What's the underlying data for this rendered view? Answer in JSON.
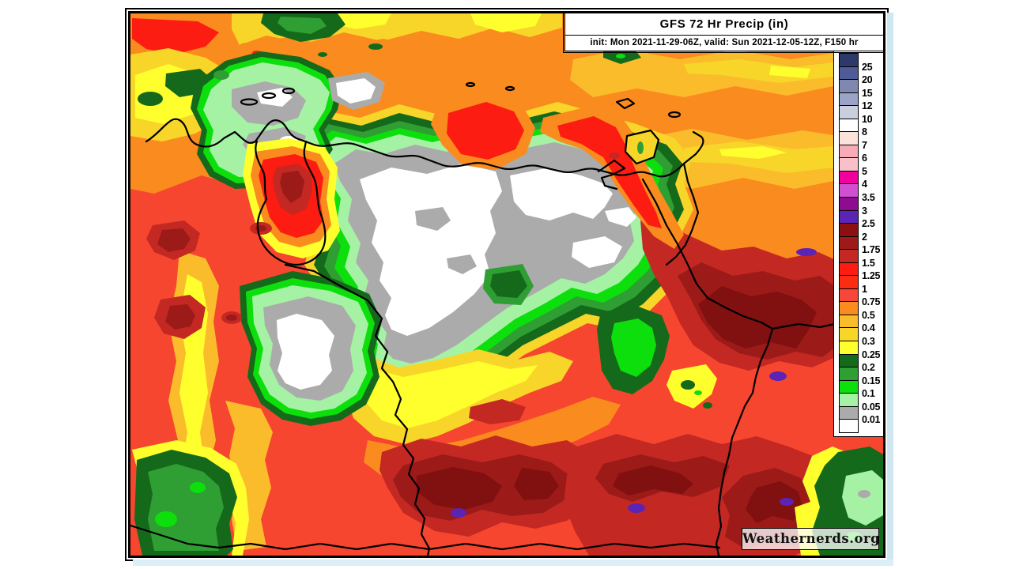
{
  "header": {
    "title": "GFS 72 Hr Precip (in)",
    "subtitle": "init: Mon 2021-11-29-06Z, valid: Sun 2021-12-05-12Z, F150 hr"
  },
  "watermark": {
    "text": "Weathernerds.org"
  },
  "legend": {
    "units": "in",
    "bins": [
      {
        "color": "#2d3968",
        "label": "25"
      },
      {
        "color": "#4f5b97",
        "label": "20"
      },
      {
        "color": "#7f88b0",
        "label": "15"
      },
      {
        "color": "#9ba4c6",
        "label": "12"
      },
      {
        "color": "#c9cfdf",
        "label": "10"
      },
      {
        "color": "#ffffff",
        "label": "8"
      },
      {
        "color": "#fbe3dc",
        "label": "7"
      },
      {
        "color": "#f7abb7",
        "label": "6"
      },
      {
        "color": "#f9c0ca",
        "label": "5"
      },
      {
        "color": "#f2009d",
        "label": "4"
      },
      {
        "color": "#d14fd1",
        "label": "3.5"
      },
      {
        "color": "#8f0b8f",
        "label": "3"
      },
      {
        "color": "#5b24b4",
        "label": "2.5"
      },
      {
        "color": "#8c1010",
        "label": "2"
      },
      {
        "color": "#9e1919",
        "label": "1.75"
      },
      {
        "color": "#c32823",
        "label": "1.5"
      },
      {
        "color": "#fd1b12",
        "label": "1.25"
      },
      {
        "color": "#fc2c12",
        "label": "1"
      },
      {
        "color": "#f7463a",
        "label": "0.75"
      },
      {
        "color": "#fa8b1e",
        "label": "0.5"
      },
      {
        "color": "#fbbc2c",
        "label": "0.4"
      },
      {
        "color": "#f8d629",
        "label": "0.3"
      },
      {
        "color": "#ffff2e",
        "label": "0.25"
      },
      {
        "color": "#15691a",
        "label": "0.2"
      },
      {
        "color": "#2f9e33",
        "label": "0.15"
      },
      {
        "color": "#0ddf0d",
        "label": "0.1"
      },
      {
        "color": "#a5f2a5",
        "label": "0.05"
      },
      {
        "color": "#ababab",
        "label": "0.01"
      },
      {
        "color": "#ffffff",
        "label": null
      }
    ]
  }
}
